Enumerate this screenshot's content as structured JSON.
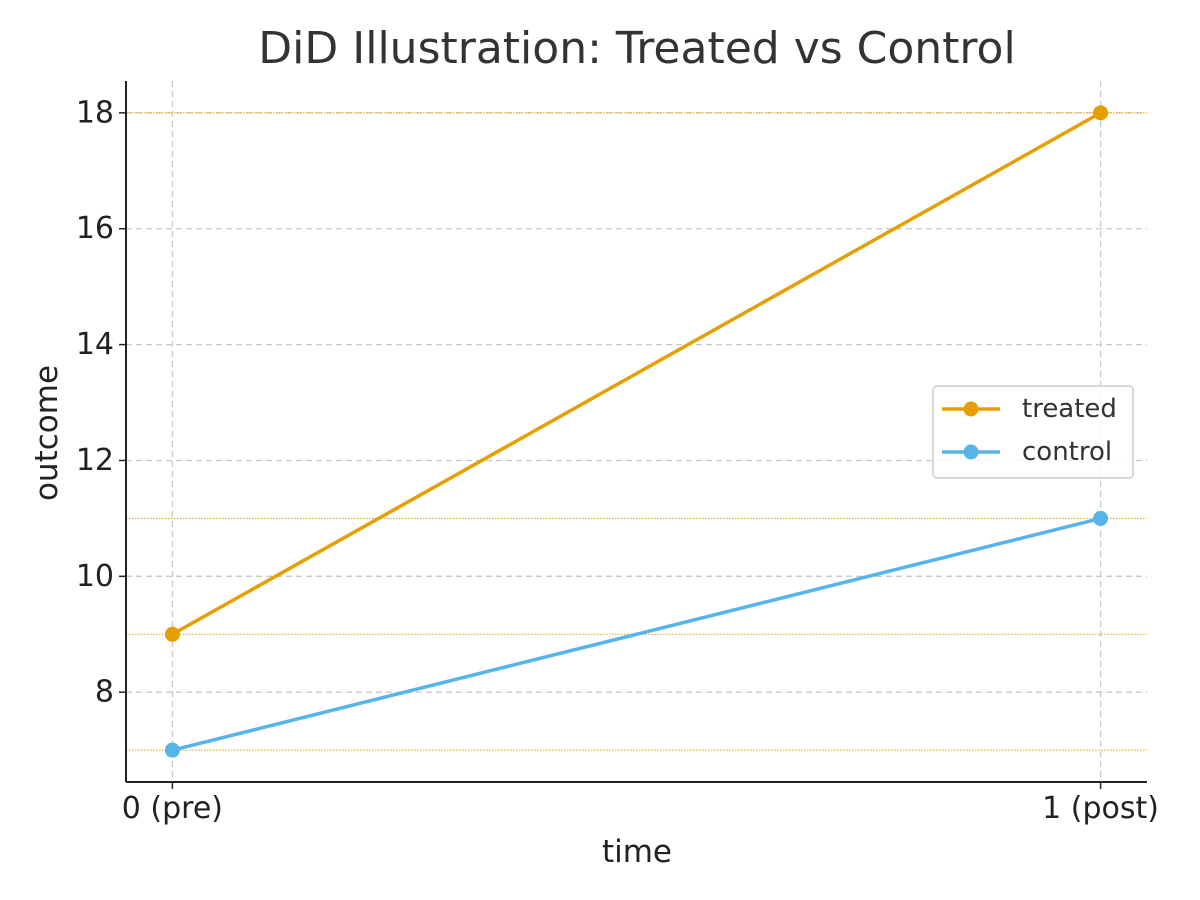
{
  "chart_data": {
    "type": "line",
    "title": "DiD Illustration: Treated vs Control",
    "xlabel": "time",
    "ylabel": "outcome",
    "categories": [
      "0 (pre)",
      "1 (post)"
    ],
    "x": [
      0,
      1
    ],
    "xlim": [
      -0.05,
      1.05
    ],
    "ylim": [
      6.45,
      18.55
    ],
    "yticks": [
      8,
      10,
      12,
      14,
      16,
      18
    ],
    "grid": true,
    "legend": "center-right",
    "reference_lines": [
      18,
      11,
      9,
      7
    ],
    "reference_line_color": "#E69F00",
    "series": [
      {
        "name": "treated",
        "values": [
          9,
          18
        ],
        "color": "#E69F00"
      },
      {
        "name": "control",
        "values": [
          7,
          11
        ],
        "color": "#56B4E9"
      }
    ]
  }
}
